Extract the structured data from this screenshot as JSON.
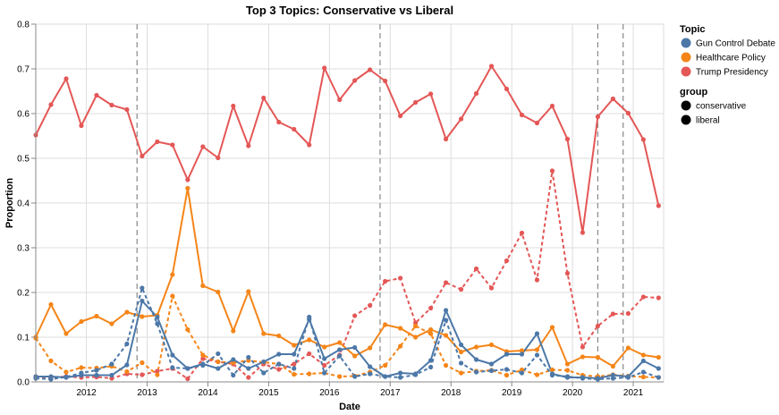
{
  "chart_data": {
    "type": "line",
    "title": "Top 3 Topics: Conservative vs Liberal",
    "xlabel": "Date",
    "ylabel": "Proportion",
    "ylim": [
      0,
      0.8
    ],
    "yticks": [
      "0.0",
      "0.1",
      "0.2",
      "0.3",
      "0.4",
      "0.5",
      "0.6",
      "0.7",
      "0.8"
    ],
    "xlim": [
      "2011-03",
      "2021-07"
    ],
    "xticks": [
      "2012",
      "2013",
      "2014",
      "2015",
      "2016",
      "2017",
      "2018",
      "2019",
      "2020",
      "2021"
    ],
    "grid": true,
    "vertical_reference_lines": [
      "2012-11",
      "2016-11",
      "2020-06",
      "2020-11"
    ],
    "legend": {
      "placement": "right",
      "color_title": "Topic",
      "color_entries": [
        {
          "label": "Gun Control Debate",
          "color": "#4c78a8"
        },
        {
          "label": "Healthcare Policy",
          "color": "#f58518"
        },
        {
          "label": "Trump Presidency",
          "color": "#e45756"
        }
      ],
      "group_title": "group",
      "group_entries": [
        "conservative",
        "liberal"
      ]
    },
    "x": [
      "2011-03",
      "2011-06",
      "2011-09",
      "2011-12",
      "2012-03",
      "2012-06",
      "2012-09",
      "2012-12",
      "2013-03",
      "2013-06",
      "2013-09",
      "2013-12",
      "2014-03",
      "2014-06",
      "2014-09",
      "2014-12",
      "2015-03",
      "2015-06",
      "2015-09",
      "2015-12",
      "2016-03",
      "2016-06",
      "2016-09",
      "2016-12",
      "2017-03",
      "2017-06",
      "2017-09",
      "2017-12",
      "2018-03",
      "2018-06",
      "2018-09",
      "2018-12",
      "2019-03",
      "2019-06",
      "2019-09",
      "2019-12",
      "2020-03",
      "2020-06",
      "2020-09",
      "2020-12",
      "2021-03",
      "2021-06"
    ],
    "series": [
      {
        "topic": "Trump Presidency",
        "group": "conservative",
        "color": "#e45756",
        "dash": "solid",
        "values": [
          0.552,
          0.62,
          0.678,
          0.573,
          0.641,
          0.619,
          0.609,
          0.505,
          0.537,
          0.53,
          0.452,
          0.526,
          0.501,
          0.617,
          0.528,
          0.635,
          0.581,
          0.565,
          0.53,
          0.702,
          0.631,
          0.674,
          0.698,
          0.673,
          0.595,
          0.625,
          0.644,
          0.543,
          0.588,
          0.645,
          0.706,
          0.655,
          0.597,
          0.579,
          0.617,
          0.543,
          0.334,
          0.593,
          0.633,
          0.601,
          0.542,
          0.394
        ]
      },
      {
        "topic": "Trump Presidency",
        "group": "liberal",
        "color": "#e45756",
        "dash": "dashed",
        "values": [
          0.012,
          0.01,
          0.012,
          0.01,
          0.011,
          0.008,
          0.018,
          0.016,
          0.024,
          0.03,
          0.007,
          0.052,
          0.045,
          0.04,
          0.01,
          0.04,
          0.028,
          0.04,
          0.063,
          0.037,
          0.06,
          0.148,
          0.171,
          0.225,
          0.232,
          0.132,
          0.165,
          0.222,
          0.207,
          0.253,
          0.21,
          0.271,
          0.333,
          0.228,
          0.472,
          0.243,
          0.078,
          0.125,
          0.152,
          0.153,
          0.19,
          0.188
        ]
      },
      {
        "topic": "Healthcare Policy",
        "group": "conservative",
        "color": "#f58518",
        "dash": "solid",
        "values": [
          0.1,
          0.173,
          0.108,
          0.135,
          0.147,
          0.13,
          0.156,
          0.146,
          0.149,
          0.24,
          0.433,
          0.215,
          0.201,
          0.114,
          0.202,
          0.108,
          0.103,
          0.082,
          0.094,
          0.078,
          0.088,
          0.058,
          0.076,
          0.128,
          0.12,
          0.1,
          0.117,
          0.104,
          0.067,
          0.078,
          0.083,
          0.068,
          0.07,
          0.072,
          0.122,
          0.04,
          0.056,
          0.055,
          0.035,
          0.076,
          0.06,
          0.055
        ]
      },
      {
        "topic": "Healthcare Policy",
        "group": "liberal",
        "color": "#f58518",
        "dash": "dashed",
        "values": [
          0.098,
          0.047,
          0.022,
          0.032,
          0.031,
          0.035,
          0.023,
          0.043,
          0.016,
          0.192,
          0.117,
          0.06,
          0.045,
          0.043,
          0.048,
          0.044,
          0.04,
          0.017,
          0.018,
          0.02,
          0.012,
          0.013,
          0.022,
          0.037,
          0.08,
          0.125,
          0.108,
          0.037,
          0.02,
          0.024,
          0.026,
          0.015,
          0.027,
          0.016,
          0.027,
          0.026,
          0.015,
          0.012,
          0.016,
          0.013,
          0.011,
          0.01
        ]
      },
      {
        "topic": "Gun Control Debate",
        "group": "conservative",
        "color": "#4c78a8",
        "dash": "solid",
        "values": [
          0.012,
          0.012,
          0.01,
          0.015,
          0.015,
          0.015,
          0.038,
          0.181,
          0.145,
          0.06,
          0.03,
          0.04,
          0.03,
          0.05,
          0.03,
          0.045,
          0.062,
          0.062,
          0.14,
          0.052,
          0.072,
          0.077,
          0.034,
          0.012,
          0.02,
          0.018,
          0.048,
          0.16,
          0.083,
          0.05,
          0.04,
          0.062,
          0.062,
          0.108,
          0.018,
          0.01,
          0.01,
          0.008,
          0.015,
          0.012,
          0.047,
          0.03
        ]
      },
      {
        "topic": "Gun Control Debate",
        "group": "liberal",
        "color": "#4c78a8",
        "dash": "dashed",
        "values": [
          0.008,
          0.006,
          0.011,
          0.02,
          0.026,
          0.04,
          0.085,
          0.21,
          0.13,
          0.032,
          0.03,
          0.037,
          0.063,
          0.015,
          0.055,
          0.02,
          0.04,
          0.03,
          0.145,
          0.02,
          0.058,
          0.012,
          0.018,
          0.012,
          0.01,
          0.016,
          0.033,
          0.138,
          0.042,
          0.022,
          0.025,
          0.028,
          0.02,
          0.06,
          0.015,
          0.012,
          0.008,
          0.006,
          0.008,
          0.01,
          0.022,
          0.01
        ]
      }
    ]
  }
}
